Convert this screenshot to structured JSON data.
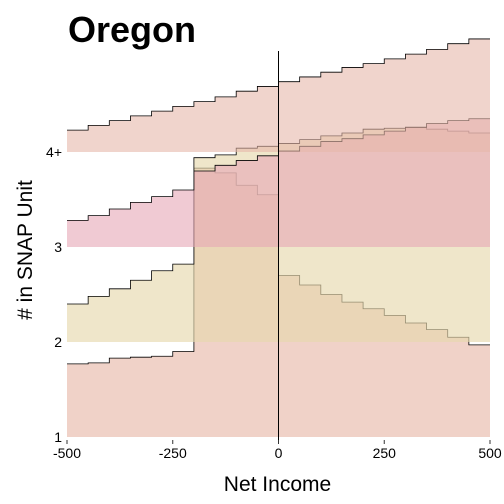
{
  "chart_data": {
    "type": "area",
    "title": "Oregon",
    "xlabel": "Net Income",
    "ylabel": "# in SNAP Unit",
    "xlim": [
      -500,
      500
    ],
    "x_ticks": [
      "-500",
      "-250",
      "0",
      "250",
      "500"
    ],
    "x_tick_values": [
      -500,
      -250,
      0,
      250,
      500
    ],
    "y_ticks": [
      "1",
      "2",
      "3",
      "4+"
    ],
    "y_tick_values": [
      1,
      2,
      3,
      4
    ],
    "reference_line_x": 0,
    "ridge_height_units": 1.0,
    "x_edges": [
      -500,
      -450,
      -400,
      -350,
      -300,
      -250,
      -200,
      -150,
      -100,
      -50,
      0,
      50,
      100,
      150,
      200,
      250,
      300,
      350,
      400,
      450,
      500
    ],
    "series": [
      {
        "name": "1",
        "baseline": 1,
        "color": "#e6b4a4",
        "opacity": 0.6,
        "values": [
          0.77,
          0.78,
          0.83,
          0.84,
          0.85,
          0.9,
          2.83,
          2.78,
          2.65,
          2.55,
          1.7,
          1.6,
          1.5,
          1.42,
          1.35,
          1.28,
          1.2,
          1.13,
          1.05,
          0.97
        ]
      },
      {
        "name": "2",
        "baseline": 2,
        "color": "#e6d8ae",
        "opacity": 0.65,
        "values": [
          0.4,
          0.48,
          0.56,
          0.65,
          0.75,
          0.82,
          1.94,
          1.97,
          2.04,
          2.06,
          2.09,
          2.13,
          2.17,
          2.2,
          2.24,
          2.25,
          2.26,
          2.24,
          2.22,
          2.2
        ]
      },
      {
        "name": "3",
        "baseline": 3,
        "color": "#e6a6b6",
        "opacity": 0.6,
        "values": [
          0.28,
          0.33,
          0.4,
          0.47,
          0.53,
          0.6,
          0.8,
          0.86,
          0.91,
          0.96,
          1.01,
          1.06,
          1.11,
          1.14,
          1.18,
          1.22,
          1.26,
          1.3,
          1.33,
          1.35
        ]
      },
      {
        "name": "4+",
        "baseline": 4,
        "color": "#e6b8aa",
        "opacity": 0.6,
        "values": [
          0.23,
          0.28,
          0.33,
          0.38,
          0.43,
          0.48,
          0.53,
          0.58,
          0.64,
          0.69,
          0.74,
          0.79,
          0.84,
          0.89,
          0.93,
          0.98,
          1.03,
          1.08,
          1.14,
          1.19
        ]
      }
    ]
  }
}
